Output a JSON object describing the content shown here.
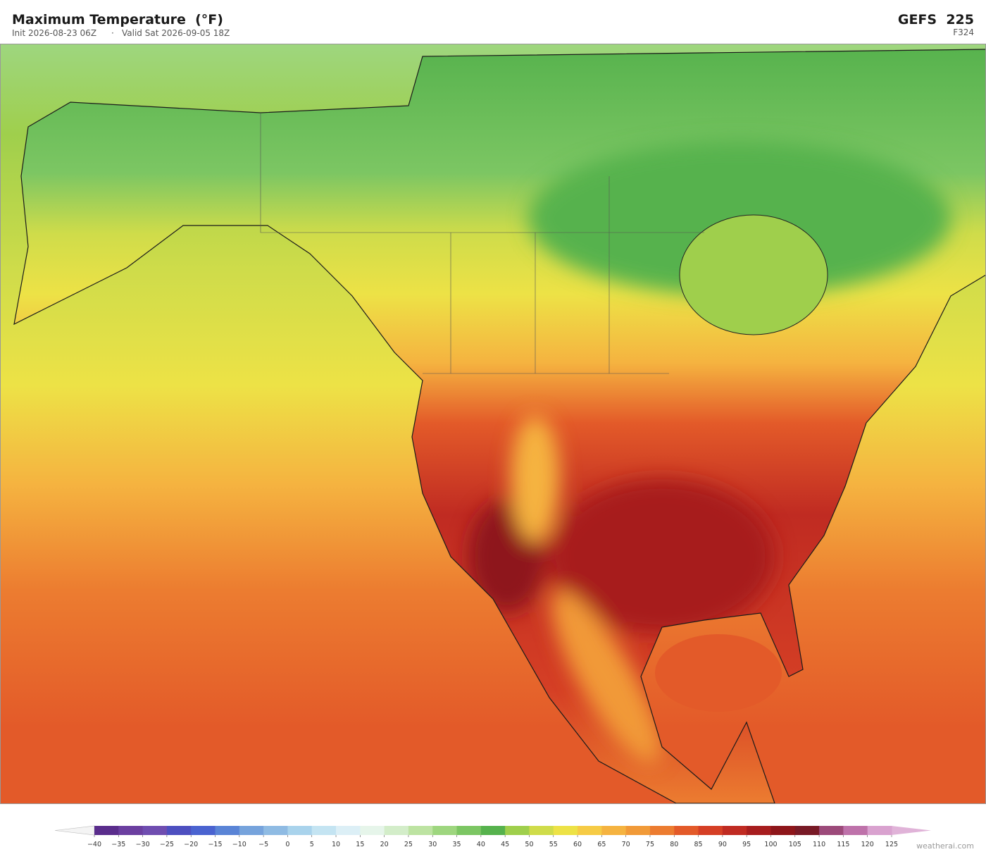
{
  "header": {
    "title": "Maximum Temperature  (°F)",
    "init": "Init 2026-08-23 06Z",
    "separator": "·",
    "valid": "Valid Sat 2026-09-05 18Z",
    "model": "GEFS  225",
    "forecast_hour": "F324"
  },
  "colorbar": {
    "ticks": [
      {
        "value": -40,
        "label": "−40"
      },
      {
        "value": -35,
        "label": "−35"
      },
      {
        "value": -30,
        "label": "−30"
      },
      {
        "value": -25,
        "label": "−25"
      },
      {
        "value": -20,
        "label": "−20"
      },
      {
        "value": -15,
        "label": "−15"
      },
      {
        "value": -10,
        "label": "−10"
      },
      {
        "value": -5,
        "label": "−5"
      },
      0,
      5,
      10,
      15,
      20,
      25,
      30,
      35,
      40,
      45,
      50,
      55,
      60,
      65,
      70,
      75,
      80,
      85,
      90,
      95,
      100,
      105,
      110,
      115,
      120,
      125
    ],
    "colors": [
      "#5a2d8c",
      "#6b3fa0",
      "#6f4db0",
      "#4d4fc0",
      "#4a63d0",
      "#5a84d6",
      "#76a3dc",
      "#8fbbe3",
      "#a9d3ec",
      "#c4e4f2",
      "#dceff6",
      "#e6f5ea",
      "#d3edc9",
      "#bde3a2",
      "#9ed67f",
      "#7cc663",
      "#56b24d",
      "#9fcf4c",
      "#cfdc4a",
      "#ede246",
      "#f6cb45",
      "#f5b340",
      "#f19a38",
      "#ec7c30",
      "#e35a29",
      "#d53f25",
      "#c02b22",
      "#a71d1e",
      "#8e161a",
      "#781a26",
      "#9c4a7a",
      "#be72aa",
      "#d9a2cf"
    ],
    "under_color": "#f4f4f4",
    "over_color": "#e0b3d8"
  },
  "watermark": "weatherai.com"
}
